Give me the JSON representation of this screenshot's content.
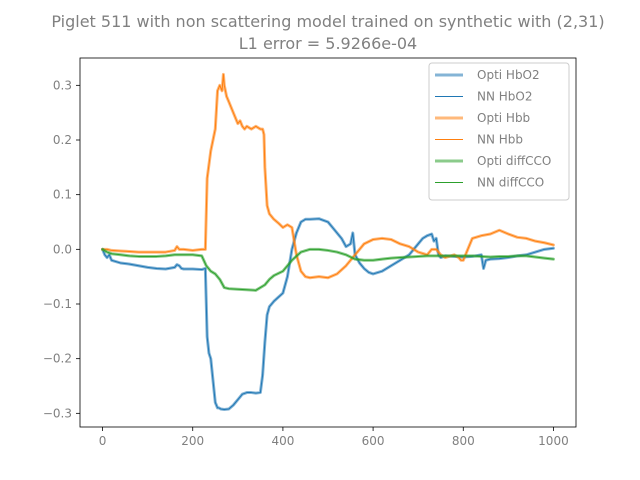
{
  "chart_data": {
    "type": "line",
    "title_line1": "Piglet 511 with non scattering model trained on synthetic with (2,31)",
    "title_line2": "L1 error = 5.9266e-04",
    "xlabel": "",
    "ylabel": "",
    "xlim": [
      -50,
      1050
    ],
    "ylim": [
      -0.325,
      0.35
    ],
    "xticks": [
      0,
      200,
      400,
      600,
      800,
      1000
    ],
    "xtick_labels": [
      "0",
      "200",
      "400",
      "600",
      "800",
      "1000"
    ],
    "yticks": [
      -0.3,
      -0.2,
      -0.1,
      0.0,
      0.1,
      0.2,
      0.3
    ],
    "ytick_labels": [
      "−0.3",
      "−0.2",
      "−0.1",
      "0.0",
      "0.1",
      "0.2",
      "0.3"
    ],
    "grid": false,
    "legend_position": "upper right",
    "series": [
      {
        "name": "Opti HbO2",
        "color": "#1f77b4",
        "style": "thick",
        "x": [
          0,
          5,
          10,
          15,
          20,
          40,
          60,
          80,
          100,
          120,
          140,
          160,
          165,
          170,
          175,
          180,
          200,
          220,
          228,
          232,
          236,
          240,
          245,
          250,
          255,
          258,
          262,
          270,
          280,
          290,
          300,
          305,
          310,
          320,
          330,
          340,
          350,
          355,
          360,
          365,
          370,
          380,
          400,
          410,
          420,
          430,
          440,
          450,
          460,
          480,
          500,
          510,
          520,
          530,
          540,
          550,
          555,
          560,
          570,
          580,
          590,
          600,
          620,
          640,
          660,
          680,
          700,
          710,
          720,
          730,
          735,
          740,
          745,
          750,
          760,
          780,
          800,
          820,
          840,
          845,
          850,
          860,
          880,
          900,
          920,
          940,
          960,
          980,
          1000
        ],
        "y": [
          0.0,
          -0.01,
          -0.015,
          -0.01,
          -0.02,
          -0.025,
          -0.027,
          -0.03,
          -0.033,
          -0.035,
          -0.036,
          -0.033,
          -0.028,
          -0.03,
          -0.035,
          -0.036,
          -0.036,
          -0.037,
          -0.035,
          -0.16,
          -0.19,
          -0.2,
          -0.24,
          -0.28,
          -0.29,
          -0.29,
          -0.292,
          -0.293,
          -0.292,
          -0.285,
          -0.275,
          -0.27,
          -0.265,
          -0.262,
          -0.262,
          -0.263,
          -0.262,
          -0.23,
          -0.17,
          -0.12,
          -0.105,
          -0.095,
          -0.08,
          -0.05,
          0.0,
          0.03,
          0.05,
          0.055,
          0.055,
          0.056,
          0.05,
          0.04,
          0.03,
          0.02,
          0.005,
          0.01,
          0.03,
          -0.01,
          -0.025,
          -0.035,
          -0.042,
          -0.045,
          -0.04,
          -0.03,
          -0.02,
          -0.01,
          0.01,
          0.02,
          0.025,
          0.028,
          0.015,
          0.02,
          -0.01,
          -0.015,
          -0.012,
          -0.013,
          -0.014,
          -0.013,
          -0.01,
          -0.035,
          -0.02,
          -0.018,
          -0.017,
          -0.015,
          -0.012,
          -0.01,
          -0.005,
          0.0,
          0.002
        ]
      },
      {
        "name": "NN HbO2",
        "color": "#1f77b4",
        "style": "thin",
        "x": [
          0,
          5,
          10,
          15,
          20,
          40,
          60,
          80,
          100,
          120,
          140,
          160,
          165,
          170,
          175,
          180,
          200,
          220,
          228,
          232,
          236,
          240,
          245,
          250,
          255,
          258,
          262,
          270,
          280,
          290,
          300,
          305,
          310,
          320,
          330,
          340,
          350,
          355,
          360,
          365,
          370,
          380,
          400,
          410,
          420,
          430,
          440,
          450,
          460,
          480,
          500,
          510,
          520,
          530,
          540,
          550,
          555,
          560,
          570,
          580,
          590,
          600,
          620,
          640,
          660,
          680,
          700,
          710,
          720,
          730,
          735,
          740,
          745,
          750,
          760,
          780,
          800,
          820,
          840,
          845,
          850,
          860,
          880,
          900,
          920,
          940,
          960,
          980,
          1000
        ],
        "y": [
          0.0,
          -0.01,
          -0.015,
          -0.01,
          -0.02,
          -0.025,
          -0.027,
          -0.03,
          -0.033,
          -0.035,
          -0.036,
          -0.033,
          -0.028,
          -0.03,
          -0.035,
          -0.036,
          -0.036,
          -0.037,
          -0.035,
          -0.16,
          -0.19,
          -0.2,
          -0.24,
          -0.28,
          -0.29,
          -0.29,
          -0.292,
          -0.293,
          -0.292,
          -0.285,
          -0.275,
          -0.27,
          -0.265,
          -0.262,
          -0.262,
          -0.263,
          -0.262,
          -0.23,
          -0.17,
          -0.12,
          -0.105,
          -0.095,
          -0.08,
          -0.05,
          0.0,
          0.03,
          0.05,
          0.055,
          0.055,
          0.056,
          0.05,
          0.04,
          0.03,
          0.02,
          0.005,
          0.01,
          0.03,
          -0.01,
          -0.025,
          -0.035,
          -0.042,
          -0.045,
          -0.04,
          -0.03,
          -0.02,
          -0.01,
          0.01,
          0.02,
          0.025,
          0.028,
          0.015,
          0.02,
          -0.01,
          -0.015,
          -0.012,
          -0.013,
          -0.014,
          -0.013,
          -0.01,
          -0.035,
          -0.02,
          -0.018,
          -0.017,
          -0.015,
          -0.012,
          -0.01,
          -0.005,
          0.0,
          0.002
        ]
      },
      {
        "name": "Opti Hbb",
        "color": "#ff7f0e",
        "style": "thick",
        "x": [
          0,
          10,
          20,
          40,
          60,
          80,
          100,
          120,
          140,
          160,
          165,
          170,
          180,
          200,
          220,
          228,
          232,
          240,
          250,
          255,
          260,
          265,
          268,
          270,
          275,
          280,
          290,
          295,
          300,
          305,
          310,
          315,
          320,
          330,
          340,
          350,
          355,
          358,
          360,
          365,
          370,
          380,
          390,
          400,
          410,
          420,
          430,
          440,
          450,
          460,
          480,
          500,
          520,
          540,
          560,
          580,
          600,
          620,
          640,
          660,
          680,
          700,
          720,
          730,
          740,
          750,
          760,
          780,
          790,
          795,
          800,
          820,
          840,
          860,
          880,
          900,
          920,
          940,
          960,
          980,
          1000
        ],
        "y": [
          0.0,
          0.0,
          -0.002,
          -0.003,
          -0.004,
          -0.005,
          -0.005,
          -0.005,
          -0.005,
          -0.002,
          0.005,
          0.0,
          0.0,
          -0.002,
          0.0,
          0.0,
          0.13,
          0.18,
          0.22,
          0.29,
          0.3,
          0.29,
          0.32,
          0.3,
          0.28,
          0.27,
          0.25,
          0.24,
          0.23,
          0.235,
          0.225,
          0.22,
          0.225,
          0.22,
          0.225,
          0.22,
          0.22,
          0.21,
          0.15,
          0.08,
          0.065,
          0.055,
          0.048,
          0.04,
          0.045,
          0.04,
          -0.01,
          -0.04,
          -0.05,
          -0.052,
          -0.05,
          -0.052,
          -0.045,
          -0.03,
          -0.01,
          0.01,
          0.018,
          0.02,
          0.018,
          0.01,
          0.005,
          -0.005,
          -0.01,
          0.0,
          0.0,
          -0.01,
          -0.015,
          -0.01,
          -0.015,
          -0.02,
          -0.02,
          0.02,
          0.025,
          0.028,
          0.035,
          0.028,
          0.022,
          0.02,
          0.015,
          0.012,
          0.008
        ]
      },
      {
        "name": "NN Hbb",
        "color": "#ff7f0e",
        "style": "thin",
        "x": [
          0,
          10,
          20,
          40,
          60,
          80,
          100,
          120,
          140,
          160,
          165,
          170,
          180,
          200,
          220,
          228,
          232,
          240,
          250,
          255,
          260,
          265,
          268,
          270,
          275,
          280,
          290,
          295,
          300,
          305,
          310,
          315,
          320,
          330,
          340,
          350,
          355,
          358,
          360,
          365,
          370,
          380,
          390,
          400,
          410,
          420,
          430,
          440,
          450,
          460,
          480,
          500,
          520,
          540,
          560,
          580,
          600,
          620,
          640,
          660,
          680,
          700,
          720,
          730,
          740,
          750,
          760,
          780,
          790,
          795,
          800,
          820,
          840,
          860,
          880,
          900,
          920,
          940,
          960,
          980,
          1000
        ],
        "y": [
          0.0,
          0.0,
          -0.002,
          -0.003,
          -0.004,
          -0.005,
          -0.005,
          -0.005,
          -0.005,
          -0.002,
          0.005,
          0.0,
          0.0,
          -0.002,
          0.0,
          0.0,
          0.13,
          0.18,
          0.22,
          0.29,
          0.3,
          0.29,
          0.32,
          0.3,
          0.28,
          0.27,
          0.25,
          0.24,
          0.23,
          0.235,
          0.225,
          0.22,
          0.225,
          0.22,
          0.225,
          0.22,
          0.22,
          0.21,
          0.15,
          0.08,
          0.065,
          0.055,
          0.048,
          0.04,
          0.045,
          0.04,
          -0.01,
          -0.04,
          -0.05,
          -0.052,
          -0.05,
          -0.052,
          -0.045,
          -0.03,
          -0.01,
          0.01,
          0.018,
          0.02,
          0.018,
          0.01,
          0.005,
          -0.005,
          -0.01,
          0.0,
          0.0,
          -0.01,
          -0.015,
          -0.01,
          -0.015,
          -0.02,
          -0.02,
          0.02,
          0.025,
          0.028,
          0.035,
          0.028,
          0.022,
          0.02,
          0.015,
          0.012,
          0.008
        ]
      },
      {
        "name": "Opti diffCCO",
        "color": "#2ca02c",
        "style": "thick",
        "x": [
          0,
          10,
          20,
          40,
          60,
          80,
          100,
          120,
          140,
          160,
          180,
          200,
          220,
          230,
          240,
          250,
          260,
          270,
          280,
          300,
          320,
          340,
          350,
          360,
          370,
          380,
          400,
          420,
          440,
          460,
          480,
          500,
          520,
          540,
          560,
          580,
          600,
          620,
          640,
          660,
          680,
          700,
          720,
          740,
          760,
          780,
          800,
          820,
          840,
          860,
          880,
          900,
          920,
          940,
          960,
          980,
          1000
        ],
        "y": [
          0.0,
          -0.005,
          -0.008,
          -0.01,
          -0.012,
          -0.013,
          -0.013,
          -0.013,
          -0.012,
          -0.01,
          -0.01,
          -0.01,
          -0.012,
          -0.03,
          -0.04,
          -0.045,
          -0.055,
          -0.07,
          -0.072,
          -0.073,
          -0.074,
          -0.075,
          -0.07,
          -0.065,
          -0.055,
          -0.048,
          -0.04,
          -0.02,
          -0.005,
          0.0,
          0.0,
          -0.002,
          -0.005,
          -0.01,
          -0.018,
          -0.02,
          -0.02,
          -0.018,
          -0.016,
          -0.015,
          -0.014,
          -0.013,
          -0.012,
          -0.012,
          -0.012,
          -0.012,
          -0.012,
          -0.012,
          -0.013,
          -0.014,
          -0.013,
          -0.013,
          -0.012,
          -0.012,
          -0.014,
          -0.016,
          -0.018
        ]
      },
      {
        "name": "NN diffCCO",
        "color": "#2ca02c",
        "style": "thin",
        "x": [
          0,
          10,
          20,
          40,
          60,
          80,
          100,
          120,
          140,
          160,
          180,
          200,
          220,
          230,
          240,
          250,
          260,
          270,
          280,
          300,
          320,
          340,
          350,
          360,
          370,
          380,
          400,
          420,
          440,
          460,
          480,
          500,
          520,
          540,
          560,
          580,
          600,
          620,
          640,
          660,
          680,
          700,
          720,
          740,
          760,
          780,
          800,
          820,
          840,
          860,
          880,
          900,
          920,
          940,
          960,
          980,
          1000
        ],
        "y": [
          0.0,
          -0.005,
          -0.008,
          -0.01,
          -0.012,
          -0.013,
          -0.013,
          -0.013,
          -0.012,
          -0.01,
          -0.01,
          -0.01,
          -0.012,
          -0.03,
          -0.04,
          -0.045,
          -0.055,
          -0.07,
          -0.072,
          -0.073,
          -0.074,
          -0.075,
          -0.07,
          -0.065,
          -0.055,
          -0.048,
          -0.04,
          -0.02,
          -0.005,
          0.0,
          0.0,
          -0.002,
          -0.005,
          -0.01,
          -0.018,
          -0.02,
          -0.02,
          -0.018,
          -0.016,
          -0.015,
          -0.014,
          -0.013,
          -0.012,
          -0.012,
          -0.012,
          -0.012,
          -0.012,
          -0.012,
          -0.013,
          -0.014,
          -0.013,
          -0.013,
          -0.012,
          -0.012,
          -0.014,
          -0.016,
          -0.018
        ]
      }
    ]
  }
}
